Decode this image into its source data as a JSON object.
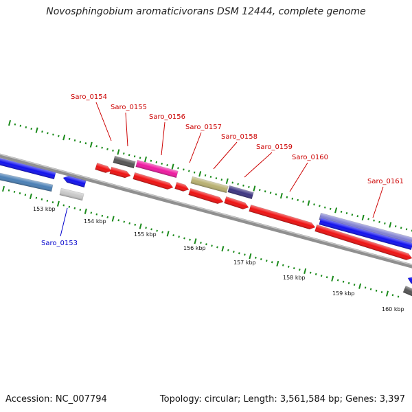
{
  "title": "Novosphingobium aromaticivorans DSM 12444, complete genome",
  "footer": {
    "accession": "Accession: NC_007794",
    "summary": "Topology: circular; Length: 3,561,584 bp; Genes: 3,397"
  },
  "scale_labels": [
    "153 kbp",
    "154 kbp",
    "155 kbp",
    "156 kbp",
    "157 kbp",
    "158 kbp",
    "159 kbp",
    "160 kbp"
  ],
  "gene_labels": [
    {
      "id": "Saro_0153",
      "color": "#0000cc"
    },
    {
      "id": "Saro_0154",
      "color": "#cc0000"
    },
    {
      "id": "Saro_0155",
      "color": "#cc0000"
    },
    {
      "id": "Saro_0156",
      "color": "#cc0000"
    },
    {
      "id": "Saro_0157",
      "color": "#cc0000"
    },
    {
      "id": "Saro_0158",
      "color": "#cc0000"
    },
    {
      "id": "Saro_0159",
      "color": "#cc0000"
    },
    {
      "id": "Saro_0160",
      "color": "#cc0000"
    },
    {
      "id": "Saro_0161",
      "color": "#cc0000"
    }
  ],
  "colors": {
    "red": "#ee1111",
    "blue": "#1111ee",
    "steel": "#4a7fb5",
    "light_gray": "#c8c8c8",
    "dark_gray": "#555555",
    "magenta": "#ee1aa0",
    "olive": "#b8b070",
    "navy": "#3c3480",
    "lavender": "#8080d0",
    "tick_green": "#1a8a1a"
  }
}
